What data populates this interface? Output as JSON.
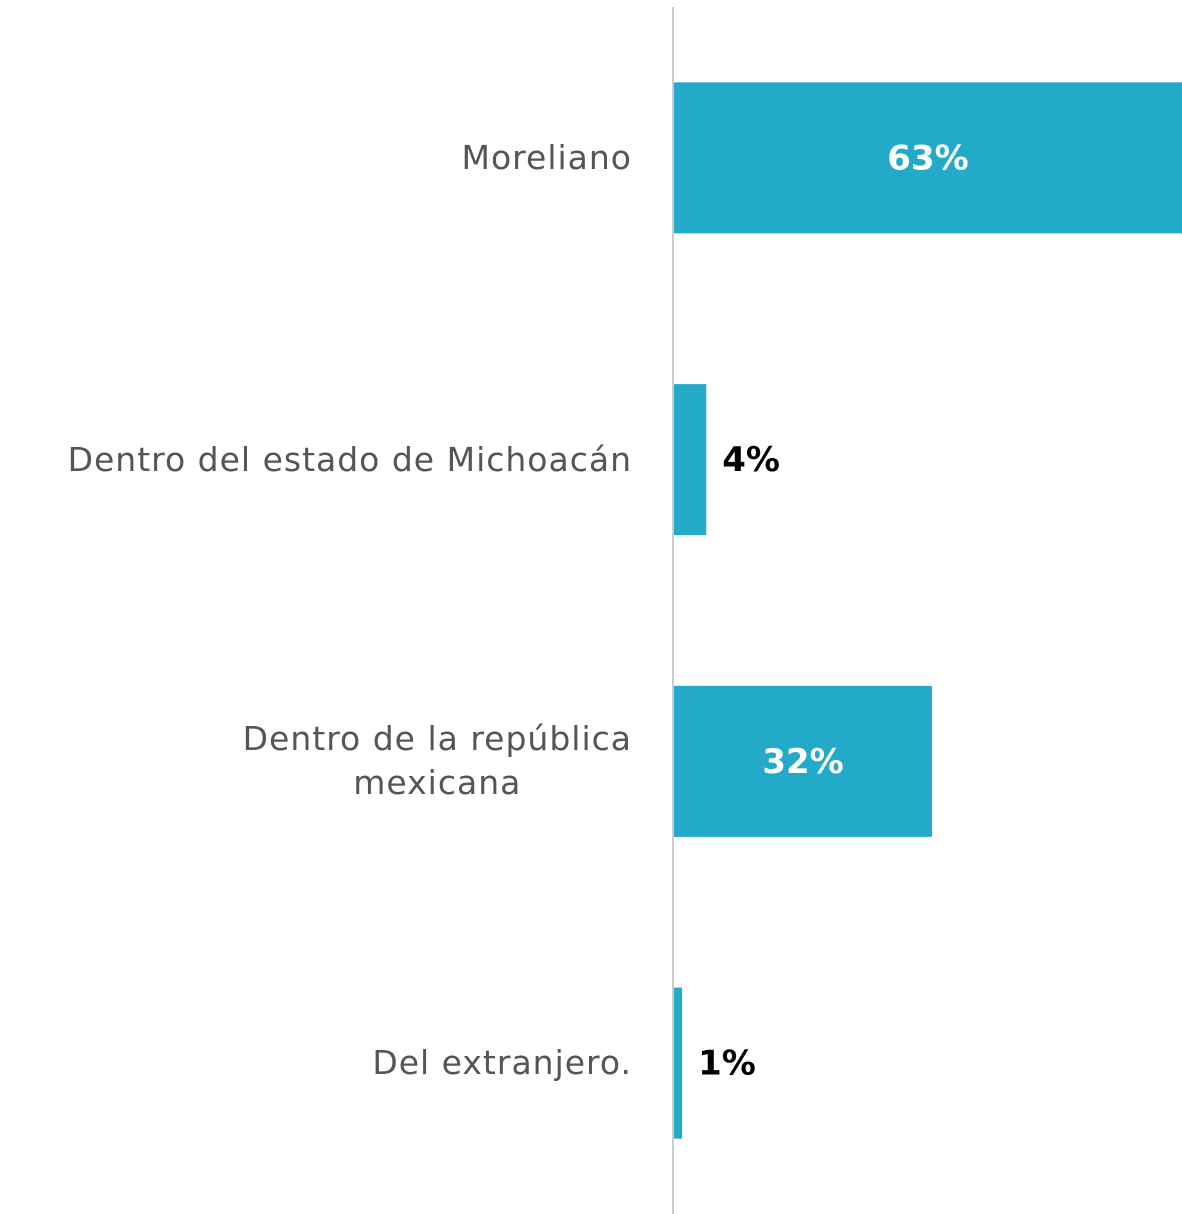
{
  "chart_data": {
    "type": "bar",
    "orientation": "horizontal",
    "categories": [
      "Moreliano",
      "Dentro del estado de Michoacán",
      "Dentro de la república\nmexicana",
      "Del extranjero."
    ],
    "values": [
      63,
      4,
      32,
      1
    ],
    "value_labels": [
      "63%",
      "4%",
      "32%",
      "1%"
    ],
    "color": "#22aac8",
    "xlim": [
      0,
      63
    ]
  }
}
